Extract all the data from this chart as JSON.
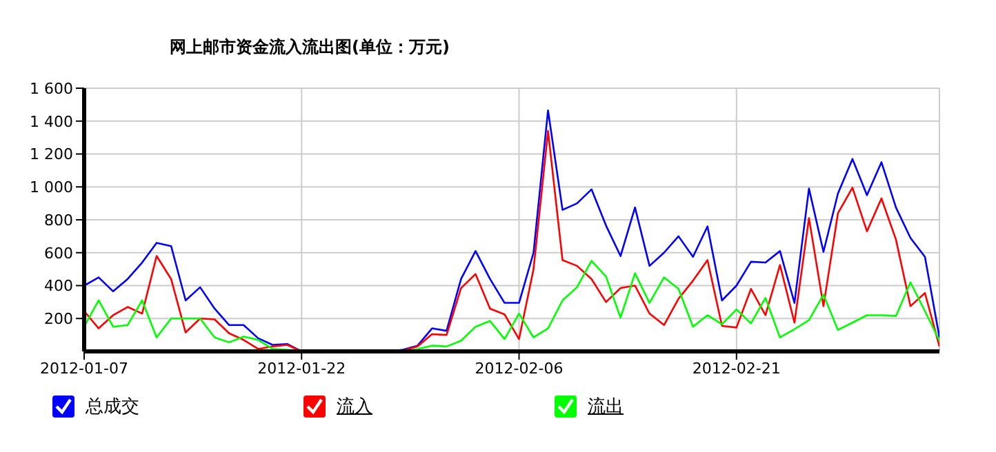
{
  "chart_data": {
    "type": "line",
    "title": "网上邮市资金流入流出图(单位：万元)",
    "x": [
      "2012-01-07",
      "2012-01-08",
      "2012-01-09",
      "2012-01-10",
      "2012-01-11",
      "2012-01-12",
      "2012-01-13",
      "2012-01-14",
      "2012-01-15",
      "2012-01-16",
      "2012-01-17",
      "2012-01-18",
      "2012-01-19",
      "2012-01-20",
      "2012-01-21",
      "2012-01-22",
      "2012-01-23",
      "2012-01-24",
      "2012-01-25",
      "2012-01-26",
      "2012-01-27",
      "2012-01-28",
      "2012-01-29",
      "2012-01-30",
      "2012-01-31",
      "2012-02-01",
      "2012-02-02",
      "2012-02-03",
      "2012-02-04",
      "2012-02-05",
      "2012-02-06",
      "2012-02-07",
      "2012-02-08",
      "2012-02-09",
      "2012-02-10",
      "2012-02-11",
      "2012-02-12",
      "2012-02-13",
      "2012-02-14",
      "2012-02-15",
      "2012-02-16",
      "2012-02-17",
      "2012-02-18",
      "2012-02-19",
      "2012-02-20",
      "2012-02-21",
      "2012-02-22",
      "2012-02-23",
      "2012-02-24",
      "2012-02-25",
      "2012-02-26",
      "2012-02-27",
      "2012-02-28",
      "2012-02-29",
      "2012-03-01",
      "2012-03-02",
      "2012-03-03",
      "2012-03-04",
      "2012-03-05",
      "2012-03-06"
    ],
    "series": [
      {
        "name": "总成交",
        "color": "#0000ff",
        "values": [
          400,
          450,
          365,
          440,
          540,
          660,
          640,
          310,
          390,
          260,
          160,
          160,
          80,
          40,
          45,
          0,
          0,
          0,
          0,
          0,
          0,
          0,
          10,
          35,
          140,
          125,
          440,
          610,
          440,
          295,
          295,
          600,
          1465,
          860,
          900,
          985,
          765,
          580,
          875,
          520,
          600,
          700,
          575,
          760,
          310,
          400,
          545,
          540,
          610,
          295,
          990,
          605,
          960,
          1170,
          950,
          1150,
          875,
          690,
          575,
          85
        ]
      },
      {
        "name": "流入",
        "color": "#ff0000",
        "values": [
          245,
          140,
          220,
          270,
          230,
          580,
          440,
          115,
          200,
          195,
          110,
          70,
          15,
          30,
          40,
          0,
          0,
          0,
          0,
          0,
          0,
          0,
          5,
          30,
          105,
          100,
          385,
          470,
          260,
          225,
          75,
          500,
          1340,
          555,
          520,
          440,
          300,
          385,
          400,
          230,
          160,
          320,
          430,
          555,
          155,
          145,
          380,
          220,
          525,
          175,
          810,
          275,
          840,
          995,
          730,
          930,
          680,
          275,
          355,
          30
        ]
      },
      {
        "name": "流出",
        "color": "#00ff00",
        "values": [
          150,
          310,
          150,
          160,
          310,
          85,
          200,
          200,
          200,
          85,
          55,
          90,
          70,
          15,
          10,
          0,
          0,
          0,
          0,
          0,
          0,
          0,
          0,
          15,
          35,
          30,
          65,
          150,
          185,
          75,
          230,
          85,
          140,
          310,
          390,
          550,
          455,
          205,
          475,
          295,
          450,
          380,
          150,
          220,
          165,
          255,
          170,
          325,
          85,
          135,
          190,
          345,
          130,
          175,
          220,
          220,
          215,
          420,
          245,
          65
        ]
      }
    ],
    "xlim": [
      "2012-01-07",
      "2012-03-06"
    ],
    "xticks": [
      "2012-01-07",
      "2012-01-22",
      "2012-02-06",
      "2012-02-21"
    ],
    "ylim": [
      0,
      1600
    ],
    "yticks": [
      200,
      400,
      600,
      800,
      {
        "value": 1000,
        "label": "1 000"
      },
      {
        "value": 1200,
        "label": "1 200"
      },
      {
        "value": 1400,
        "label": "1 400"
      },
      {
        "value": 1600,
        "label": "1 600"
      }
    ],
    "grid": true,
    "legend": "bottom",
    "marker": "none",
    "line_style": "solid"
  }
}
